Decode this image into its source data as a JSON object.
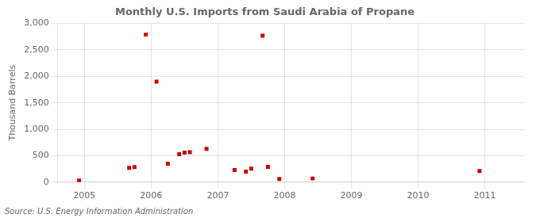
{
  "chart_data": {
    "type": "scatter",
    "title": "Monthly U.S. Imports from Saudi Arabia of Propane",
    "ylabel": "Thousand Barrels",
    "annotations": [
      "Source: U.S. Energy Information Administration"
    ],
    "x": [
      2004.92,
      2005.67,
      2005.75,
      2005.92,
      2006.08,
      2006.25,
      2006.42,
      2006.5,
      2006.58,
      2006.83,
      2007.25,
      2007.42,
      2007.5,
      2007.67,
      2007.75,
      2007.92,
      2008.42,
      2010.92
    ],
    "values": [
      30,
      270,
      285,
      2790,
      1900,
      350,
      530,
      560,
      565,
      630,
      230,
      200,
      255,
      2770,
      290,
      60,
      70,
      210
    ],
    "color": "#cc0000",
    "marker": "square",
    "xlim": [
      2004.6,
      2011.6
    ],
    "xticks": [
      2005,
      2006,
      2007,
      2008,
      2009,
      2010,
      2011
    ],
    "ylim": [
      0,
      3000
    ],
    "yticks": [
      0,
      500,
      {
        "value": 1000,
        "label": "1,000"
      },
      {
        "value": 1500,
        "label": "1,500"
      },
      {
        "value": 2000,
        "label": "2,000"
      },
      {
        "value": 2500,
        "label": "2,500"
      },
      {
        "value": 3000,
        "label": "3,000"
      }
    ],
    "grid": true
  }
}
